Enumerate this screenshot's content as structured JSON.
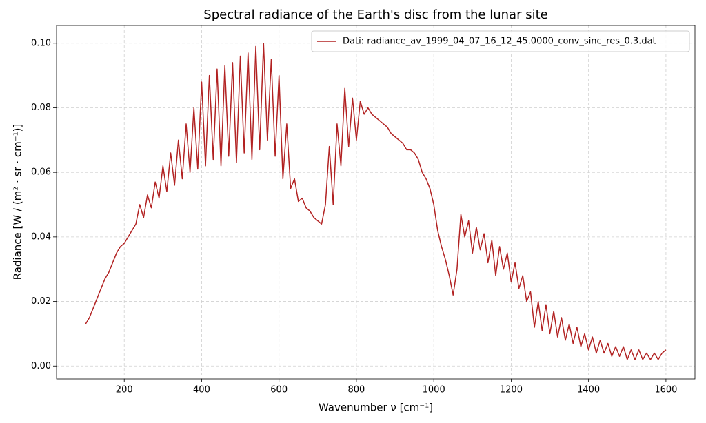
{
  "chart_data": {
    "type": "line",
    "title": "Spectral radiance of the Earth's disc from the lunar site",
    "x_label": "Wavenumber ν [cm⁻¹]",
    "y_label": "Radiance [W / (m² · sr · cm⁻¹)]",
    "x": [
      100,
      110,
      120,
      130,
      140,
      150,
      160,
      170,
      180,
      190,
      200,
      210,
      220,
      230,
      240,
      250,
      260,
      270,
      280,
      290,
      300,
      310,
      320,
      330,
      340,
      350,
      360,
      370,
      380,
      390,
      400,
      410,
      420,
      430,
      440,
      450,
      460,
      470,
      480,
      490,
      500,
      510,
      520,
      530,
      540,
      550,
      560,
      570,
      580,
      590,
      600,
      610,
      620,
      630,
      640,
      650,
      660,
      670,
      680,
      690,
      700,
      710,
      720,
      730,
      740,
      750,
      760,
      770,
      780,
      790,
      800,
      810,
      820,
      830,
      840,
      850,
      860,
      870,
      880,
      890,
      900,
      910,
      920,
      930,
      940,
      950,
      960,
      970,
      980,
      990,
      1000,
      1010,
      1020,
      1030,
      1040,
      1050,
      1060,
      1070,
      1080,
      1090,
      1100,
      1110,
      1120,
      1130,
      1140,
      1150,
      1160,
      1170,
      1180,
      1190,
      1200,
      1210,
      1220,
      1230,
      1240,
      1250,
      1260,
      1270,
      1280,
      1290,
      1300,
      1310,
      1320,
      1330,
      1340,
      1350,
      1360,
      1370,
      1380,
      1390,
      1400,
      1410,
      1420,
      1430,
      1440,
      1450,
      1460,
      1470,
      1480,
      1490,
      1500,
      1510,
      1520,
      1530,
      1540,
      1550,
      1560,
      1570,
      1580,
      1590,
      1600
    ],
    "series": [
      {
        "name": "Dati: radiance_av_1999_04_07_16_12_45.0000_conv_sinc_res_0.3.dat",
        "color": "#b22222",
        "values": [
          0.013,
          0.015,
          0.018,
          0.021,
          0.024,
          0.027,
          0.029,
          0.032,
          0.035,
          0.037,
          0.038,
          0.04,
          0.042,
          0.044,
          0.05,
          0.046,
          0.053,
          0.049,
          0.057,
          0.052,
          0.062,
          0.054,
          0.066,
          0.056,
          0.07,
          0.058,
          0.075,
          0.06,
          0.08,
          0.061,
          0.088,
          0.062,
          0.09,
          0.064,
          0.092,
          0.062,
          0.093,
          0.065,
          0.094,
          0.063,
          0.096,
          0.066,
          0.097,
          0.064,
          0.099,
          0.067,
          0.1,
          0.07,
          0.095,
          0.065,
          0.09,
          0.058,
          0.075,
          0.055,
          0.058,
          0.051,
          0.052,
          0.049,
          0.048,
          0.046,
          0.045,
          0.044,
          0.05,
          0.068,
          0.05,
          0.075,
          0.062,
          0.086,
          0.068,
          0.083,
          0.07,
          0.082,
          0.078,
          0.08,
          0.078,
          0.077,
          0.076,
          0.075,
          0.074,
          0.072,
          0.071,
          0.07,
          0.069,
          0.067,
          0.067,
          0.066,
          0.064,
          0.06,
          0.058,
          0.055,
          0.05,
          0.042,
          0.037,
          0.033,
          0.028,
          0.022,
          0.03,
          0.047,
          0.04,
          0.045,
          0.035,
          0.043,
          0.036,
          0.041,
          0.032,
          0.039,
          0.028,
          0.037,
          0.03,
          0.035,
          0.026,
          0.032,
          0.024,
          0.028,
          0.02,
          0.023,
          0.012,
          0.02,
          0.011,
          0.019,
          0.01,
          0.017,
          0.009,
          0.015,
          0.008,
          0.013,
          0.007,
          0.012,
          0.006,
          0.01,
          0.005,
          0.009,
          0.004,
          0.008,
          0.004,
          0.007,
          0.003,
          0.006,
          0.003,
          0.006,
          0.002,
          0.005,
          0.002,
          0.005,
          0.002,
          0.004,
          0.002,
          0.004,
          0.002,
          0.004,
          0.005
        ]
      }
    ],
    "xlim": [
      25,
      1675
    ],
    "ylim": [
      -0.004,
      0.1055
    ],
    "xticks": [
      200,
      400,
      600,
      800,
      1000,
      1200,
      1400,
      1600
    ],
    "yticks": [
      {
        "value": 0,
        "label": "0.00"
      },
      0.02,
      0.04,
      0.06,
      0.08,
      {
        "value": 0.1,
        "label": "0.10"
      }
    ],
    "grid": true,
    "legend": "upper right"
  }
}
